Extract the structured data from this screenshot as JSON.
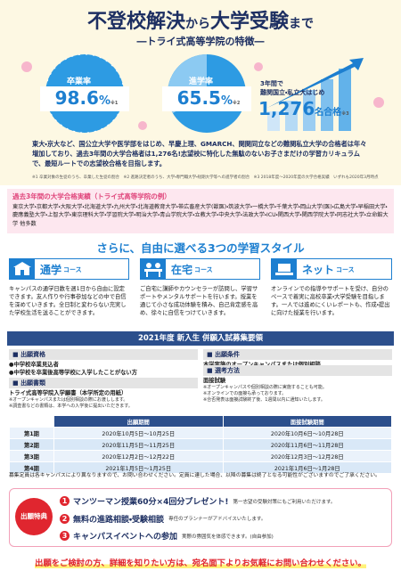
{
  "header": {
    "title": [
      "不登校解決",
      "から",
      "大学受験",
      "まで"
    ],
    "subtitle": "―トライ式高等学院の特徴―"
  },
  "stats": [
    {
      "label": "卒業率",
      "value": "98.6",
      "unit": "%",
      "note": "※1"
    },
    {
      "label": "進学率",
      "value": "65.5",
      "unit": "%",
      "note": "※2"
    }
  ],
  "result": {
    "label": [
      "3年間で",
      "難関国立・私立大はじめ"
    ],
    "value": "1,276",
    "unit": "名合格",
    "note": "※3"
  },
  "summary": "東大・京大など、国公立大学や医学部をはじめ、早慶上理、GMARCH、関関同立などの難関私立大学の合格者は年々増加しており、過去3年間の大学合格者は1,276名!志望校に特化した無駄のないお子さまだけの学習カリキュラムで、最短ルートでの志望校合格を目指します。",
  "footnotes": "※1 卒業対象の生徒のうち、卒業した生徒の割合　※2 進路決定者のうち、大学・専門職大学・短期大学等への進学者の割合　※3 2018年度〜2020年度の大学合格実績　いずれも2020年3月時点",
  "achievements": {
    "title": "過去3年間の大学合格実績（トライ式高等学院の例）",
    "text": "東京大学・京都大学・大阪大学・北海道大学・九州大学・北海道教育大学・帯広畜産大学(獣医)・筑波大学・一橋大学・千葉大学・岡山大学(医)・広島大学・早稲田大学・慶應義塾大学・上智大学・東京理科大学・学習院大学・明治大学・青山学院大学・立教大学・中央大学・法政大学・ICU・関西大学・関西学院大学・同志社大学・立命館大学 他多数"
  },
  "styles": {
    "heading": "さらに、自由に選べる3つの学習スタイル",
    "courses": [
      {
        "name": "通学",
        "suffix": "コース",
        "text": "キャンパスの通学日数を週1日から自由に設定できます。友人作りや行事参加などの中で自信を深めていきます。全日制と変わらない充実した学校生活を送ることができます。"
      },
      {
        "name": "在宅",
        "suffix": "コース",
        "text": "ご自宅に講師やカウンセラーが訪問し、学習サポートやメンタルサポートを行います。授業を通じて小さな成功体験を積み、自己肯定感を高め、徐々に自信をつけていきます。"
      },
      {
        "name": "ネット",
        "suffix": "コース",
        "text": "オンラインでの指導やサポートを受け、自分のペースで着実に高校卒業・大学受験を目指します。一人では進めにくいレポートも、作成・提出に向けた授業を行います。"
      }
    ]
  },
  "admission": {
    "band": "2021年度 新入生 併願入試募集要領",
    "eligibility": {
      "title": "出願資格",
      "items": [
        "●中学校卒業見込者",
        "●中学校を卒業後高等学校に入学したことがない方"
      ]
    },
    "condition": {
      "title": "出願条件",
      "text": "本学実施のオープンキャンパスまたは個別相談（オンライン含む）への参加"
    },
    "documents": {
      "title": "出願書類",
      "text": "トライ式高等学院入学願書（本学所定の用紙）",
      "notes": [
        "※オープンキャンパスまたは個別相談の際にお渡しします。",
        "※調査書などの書類は、本学への入学後に提出いただきます。"
      ]
    },
    "selection": {
      "title": "選考方法",
      "text": "面接試験",
      "notes": [
        "※オープンキャンパスや個別相談の際に実施することも可能。",
        "※オンラインでの面接も承っております。",
        "※合否発表は面接試験終了後、1週間以内に通知いたします。"
      ]
    }
  },
  "table": {
    "header": [
      "出願期間",
      "面接試験期間"
    ],
    "rows": [
      [
        "第1期",
        "2020年10月5日～10月25日",
        "2020年10月6日～10月28日"
      ],
      [
        "第2期",
        "2020年11月5日～11月25日",
        "2020年11月6日～11月28日"
      ],
      [
        "第3期",
        "2020年12月2日～12月22日",
        "2020年12月3日～12月28日"
      ],
      [
        "第4期",
        "2021年1月5日～1月25日",
        "2021年1月6日～1月28日"
      ]
    ]
  },
  "capacity_note": "募集定員は各キャンパスにより異なりますので、お問い合わせください。定員に達した場合、以降の募集は終了となる可能性がございますのでご了承ください。",
  "perks": {
    "label": "出願特典",
    "items": [
      {
        "number": "1",
        "title": "マンツーマン授業60分×4回分プレゼント!",
        "note": "第一志望の受験対策にもご利用いただけます。"
      },
      {
        "number": "2",
        "title": "無料の進路相談・受験相談",
        "note": "専任のプランナーがアドバイスいたします。"
      },
      {
        "number": "3",
        "title": "キャンパスイベントへの参加",
        "note": "実際の雰囲気を体感できます。(自由参加)"
      }
    ]
  },
  "contact": "出願をご検討の方、詳細を知りたい方は、宛名面下よりお気軽にお問い合わせください。"
}
